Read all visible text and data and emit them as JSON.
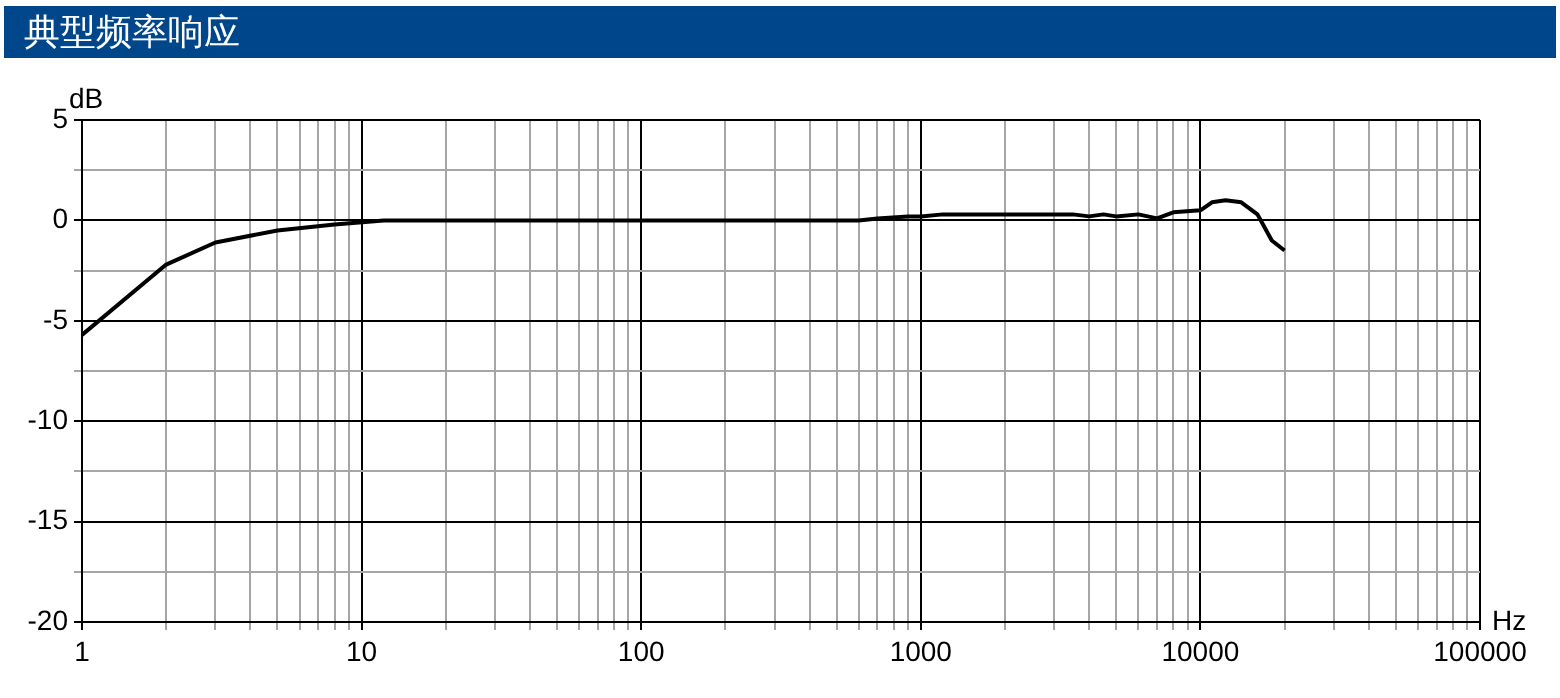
{
  "chart_data": {
    "type": "line",
    "title": "典型频率响应",
    "xlabel": "Hz",
    "ylabel": "dB",
    "log": "x",
    "x": [
      1,
      2,
      3,
      5,
      8,
      12,
      600,
      700,
      900,
      1000,
      1200,
      3000,
      3500,
      4000,
      4500,
      5000,
      6000,
      7000,
      8000,
      10000,
      11000,
      12300,
      14000,
      16000,
      18000,
      20000
    ],
    "series": [
      {
        "color": "#000000",
        "values": [
          -5.7,
          -2.2,
          -1.1,
          -0.5,
          -0.2,
          0,
          0,
          0.1,
          0.2,
          0.2,
          0.3,
          0.3,
          0.3,
          0.2,
          0.3,
          0.2,
          0.3,
          0.1,
          0.4,
          0.5,
          0.9,
          1,
          0.9,
          0.3,
          -1,
          -1.5
        ]
      }
    ],
    "xlim": [
      1,
      100000
    ],
    "xticks": [
      1,
      {
        "value": 2,
        "label": null
      },
      {
        "value": 3,
        "label": null
      },
      {
        "value": 4,
        "label": null
      },
      {
        "value": 5,
        "label": null
      },
      {
        "value": 6,
        "label": null
      },
      {
        "value": 7,
        "label": null
      },
      {
        "value": 8,
        "label": null
      },
      {
        "value": 9,
        "label": null
      },
      10,
      {
        "value": 20,
        "label": null
      },
      {
        "value": 30,
        "label": null
      },
      {
        "value": 40,
        "label": null
      },
      {
        "value": 50,
        "label": null
      },
      {
        "value": 60,
        "label": null
      },
      {
        "value": 70,
        "label": null
      },
      {
        "value": 80,
        "label": null
      },
      {
        "value": 90,
        "label": null
      },
      100,
      {
        "value": 200,
        "label": null
      },
      {
        "value": 300,
        "label": null
      },
      {
        "value": 400,
        "label": null
      },
      {
        "value": 500,
        "label": null
      },
      {
        "value": 600,
        "label": null
      },
      {
        "value": 700,
        "label": null
      },
      {
        "value": 800,
        "label": null
      },
      {
        "value": 900,
        "label": null
      },
      1000,
      {
        "value": 2000,
        "label": null
      },
      {
        "value": 3000,
        "label": null
      },
      {
        "value": 4000,
        "label": null
      },
      {
        "value": 5000,
        "label": null
      },
      {
        "value": 6000,
        "label": null
      },
      {
        "value": 7000,
        "label": null
      },
      {
        "value": 8000,
        "label": null
      },
      {
        "value": 9000,
        "label": null
      },
      10000,
      {
        "value": 20000,
        "label": null
      },
      {
        "value": 30000,
        "label": null
      },
      {
        "value": 40000,
        "label": null
      },
      {
        "value": 50000,
        "label": null
      },
      {
        "value": 60000,
        "label": null
      },
      {
        "value": 70000,
        "label": null
      },
      {
        "value": 80000,
        "label": null
      },
      {
        "value": 90000,
        "label": null
      },
      100000
    ],
    "ylim": [
      -20,
      5
    ],
    "yticks": [
      -20,
      {
        "value": -17.5,
        "label": null
      },
      -15,
      {
        "value": -12.5,
        "label": null
      },
      -10,
      {
        "value": -7.5,
        "label": null
      },
      -5,
      {
        "value": -2.5,
        "label": null
      },
      0,
      {
        "value": 2.5,
        "label": null
      },
      5
    ],
    "grid": true,
    "legend": false,
    "marker": "none",
    "line_style": "solid"
  }
}
